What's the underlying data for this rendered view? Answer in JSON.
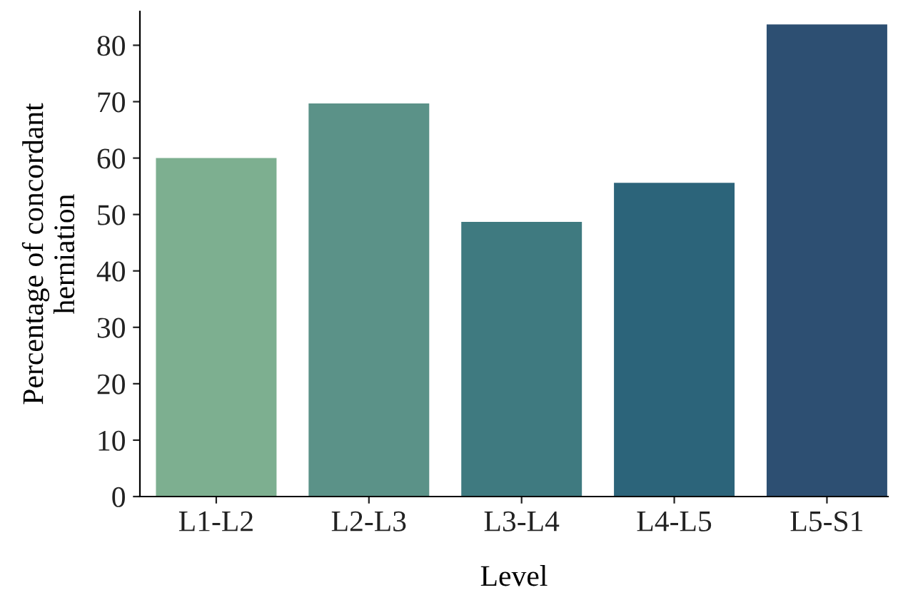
{
  "chart_data": {
    "type": "bar",
    "xlabel": "Level",
    "ylabel": "Percentage of concordant\nherniation",
    "categories": [
      "L1-L2",
      "L2-L3",
      "L3-L4",
      "L4-L5",
      "L5-S1"
    ],
    "values": [
      60.0,
      69.7,
      48.7,
      55.6,
      83.7
    ],
    "colors": [
      "#7daf90",
      "#5b9288",
      "#3f7a80",
      "#2c647a",
      "#2d4f72"
    ],
    "ylim": [
      0,
      86
    ],
    "yticks": [
      0,
      10,
      20,
      30,
      40,
      50,
      60,
      70,
      80
    ],
    "grid": false,
    "legend": false
  }
}
